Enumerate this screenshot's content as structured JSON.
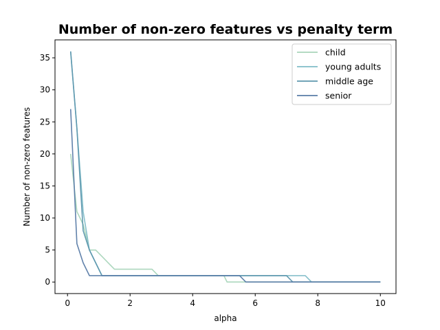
{
  "chart_data": {
    "type": "line",
    "title": "Number of non-zero features vs penalty term",
    "xlabel": "alpha",
    "ylabel": "Number of non-zero features",
    "xlim": [
      -0.4,
      10.5
    ],
    "ylim": [
      -1.8,
      37.8
    ],
    "xticks": [
      0,
      2,
      4,
      6,
      8,
      10
    ],
    "yticks": [
      0,
      5,
      10,
      15,
      20,
      25,
      30,
      35
    ],
    "grid": false,
    "legend_position": "top-right",
    "series": [
      {
        "name": "child",
        "color": "#a8d5ba",
        "x": [
          0.1,
          0.3,
          0.5,
          0.7,
          0.9,
          1.1,
          1.3,
          1.5,
          1.7,
          1.9,
          2.1,
          2.3,
          2.5,
          2.7,
          2.9,
          3.1,
          3.5,
          4.0,
          4.5,
          5.0,
          5.1,
          5.3,
          5.5,
          5.7,
          6.0,
          6.5,
          7.0,
          7.5,
          8.0,
          8.5,
          9.0,
          9.5,
          10.0
        ],
        "values": [
          20,
          11,
          9,
          5,
          5,
          4,
          3,
          2,
          2,
          2,
          2,
          2,
          2,
          2,
          1,
          1,
          1,
          1,
          1,
          1,
          0,
          0,
          0,
          0,
          0,
          0,
          0,
          0,
          0,
          0,
          0,
          0,
          0
        ]
      },
      {
        "name": "young adults",
        "color": "#7fbcc7",
        "x": [
          0.1,
          0.3,
          0.5,
          0.7,
          0.9,
          1.1,
          1.5,
          2.0,
          2.5,
          3.0,
          3.5,
          4.0,
          4.5,
          5.0,
          5.5,
          6.0,
          6.5,
          7.0,
          7.6,
          7.8,
          8.0,
          8.5,
          9.0,
          9.5,
          10.0
        ],
        "values": [
          36,
          24,
          11,
          5,
          3,
          1,
          1,
          1,
          1,
          1,
          1,
          1,
          1,
          1,
          1,
          1,
          1,
          1,
          1,
          0,
          0,
          0,
          0,
          0,
          0
        ]
      },
      {
        "name": "middle age",
        "color": "#5c96ad",
        "x": [
          0.1,
          0.3,
          0.5,
          0.7,
          0.9,
          1.1,
          1.5,
          2.0,
          2.5,
          3.0,
          3.5,
          4.0,
          4.5,
          5.0,
          5.5,
          6.0,
          6.5,
          7.0,
          7.2,
          7.5,
          8.0,
          8.5,
          9.0,
          9.5,
          10.0
        ],
        "values": [
          36,
          24,
          8,
          5,
          3,
          1,
          1,
          1,
          1,
          1,
          1,
          1,
          1,
          1,
          1,
          1,
          1,
          1,
          0,
          0,
          0,
          0,
          0,
          0,
          0
        ]
      },
      {
        "name": "senior",
        "color": "#587ba6",
        "x": [
          0.1,
          0.3,
          0.5,
          0.7,
          0.9,
          1.1,
          1.5,
          2.0,
          2.5,
          3.0,
          3.5,
          4.0,
          4.5,
          5.0,
          5.5,
          5.7,
          6.0,
          6.5,
          7.0,
          7.5,
          8.0,
          8.5,
          9.0,
          9.5,
          10.0
        ],
        "values": [
          27,
          6,
          3,
          1,
          1,
          1,
          1,
          1,
          1,
          1,
          1,
          1,
          1,
          1,
          1,
          0,
          0,
          0,
          0,
          0,
          0,
          0,
          0,
          0,
          0
        ]
      }
    ]
  }
}
